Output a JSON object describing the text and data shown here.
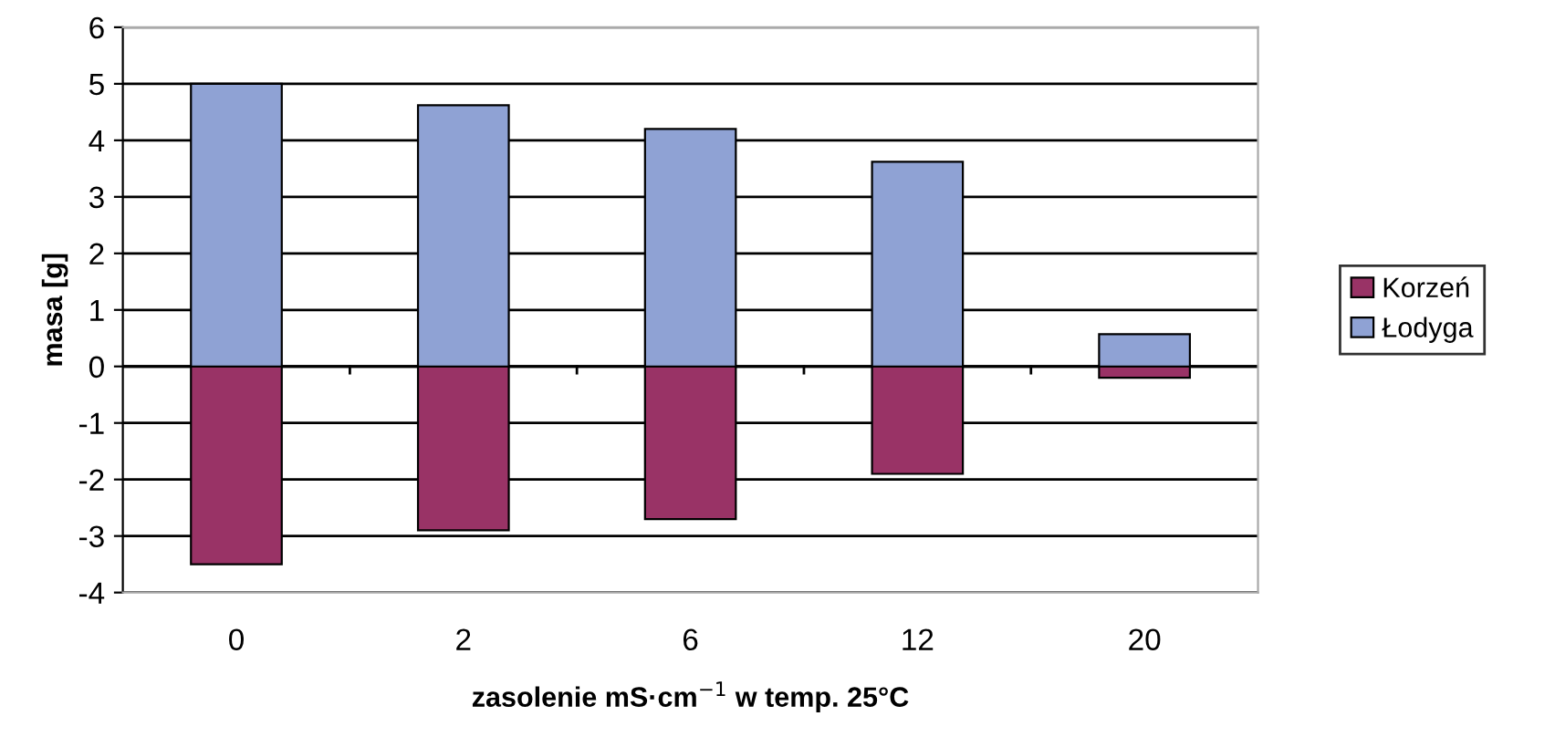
{
  "chart_data": {
    "type": "bar",
    "stacked": true,
    "xlabel": "zasolenie mS·cm$^{−1}$ w temp. 25°C",
    "ylabel": "masa [g]",
    "categories": [
      "0",
      "2",
      "6",
      "12",
      "20"
    ],
    "series": [
      {
        "name": "Korzeń",
        "color": "#993366",
        "values": [
          -3.5,
          -2.9,
          -2.7,
          -1.9,
          -0.2
        ]
      },
      {
        "name": "Łodyga",
        "color": "#8fa2d4",
        "values": [
          5.0,
          4.62,
          4.2,
          3.62,
          0.57
        ]
      }
    ],
    "ylim": [
      -4,
      6
    ],
    "yticks": [
      -4,
      -3,
      -2,
      -1,
      0,
      1,
      2,
      3,
      4,
      5,
      6
    ],
    "grid": "y",
    "legend": "right"
  }
}
